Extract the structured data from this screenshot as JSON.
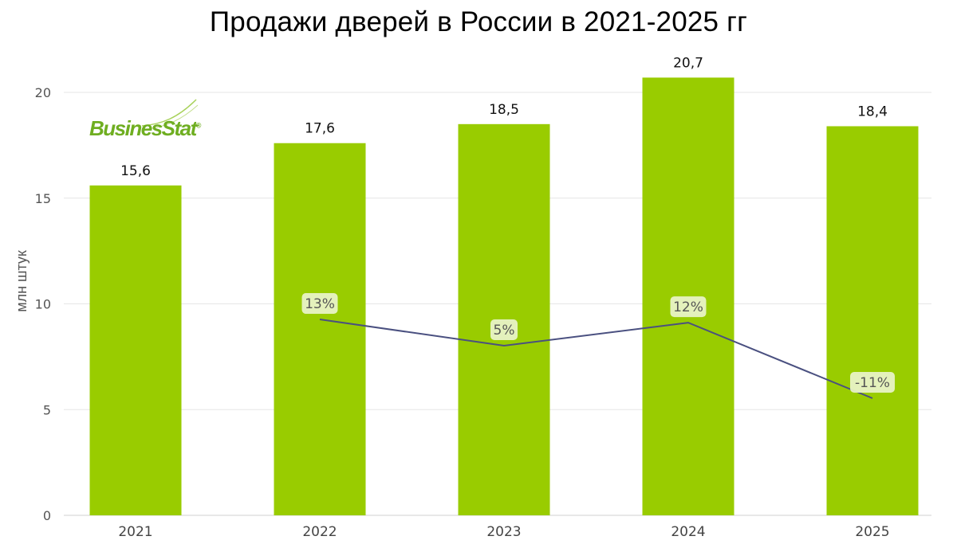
{
  "logo": {
    "text": "BusinesStat",
    "reg": "®"
  },
  "chart_data": {
    "type": "bar",
    "title": "Продажи дверей в России в 2021-2025 гг",
    "ylabel": "млн штук",
    "xlabel": "",
    "ylim": [
      0,
      22
    ],
    "yticks": [
      0,
      5,
      10,
      15,
      20
    ],
    "grid": true,
    "categories": [
      "2021",
      "2022",
      "2023",
      "2024",
      "2025"
    ],
    "series": [
      {
        "values": [
          15.6,
          17.6,
          18.5,
          20.7,
          18.4
        ],
        "labels": [
          "15,6",
          "17,6",
          "18,5",
          "20,7",
          "18,4"
        ],
        "color": "#99cc00"
      }
    ],
    "growth_line": {
      "categories": [
        "2022",
        "2023",
        "2024",
        "2025"
      ],
      "values": [
        13,
        5,
        12,
        -11
      ],
      "labels": [
        "13%",
        "5%",
        "12%",
        "-11%"
      ],
      "color": "#4a5080",
      "label_bg": "#e8f2c6"
    }
  }
}
